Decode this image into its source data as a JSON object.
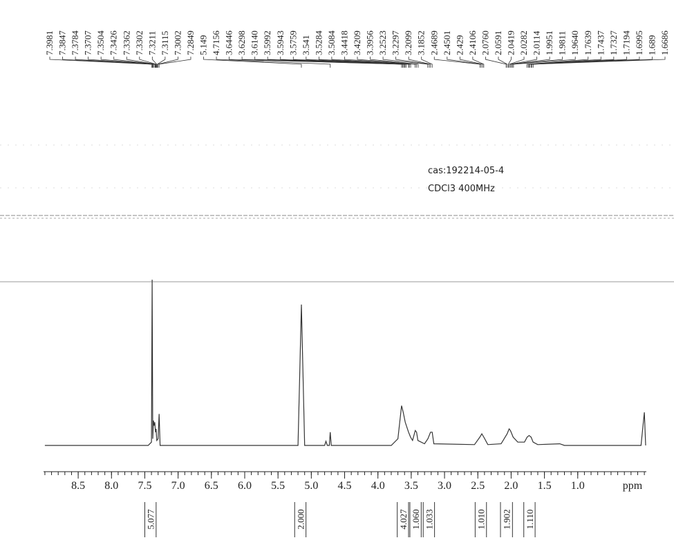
{
  "chart_data": {
    "type": "line",
    "annotations": [
      "cas:192214-05-4",
      "CDCl3 400MHz"
    ],
    "xlabel": "ppm",
    "xlim": [
      9.02,
      -0.03
    ],
    "xticks": [
      8.5,
      {
        "value": 8,
        "label": "8.0"
      },
      7.5,
      {
        "value": 7,
        "label": "7.0"
      },
      6.5,
      {
        "value": 6,
        "label": "6.0"
      },
      5.5,
      {
        "value": 5,
        "label": "5.0"
      },
      4.5,
      {
        "value": 4,
        "label": "4.0"
      },
      3.5,
      {
        "value": 3,
        "label": "3.0"
      },
      2.5,
      {
        "value": 2,
        "label": "2.0"
      },
      1.5,
      {
        "value": 1,
        "label": "1.0"
      }
    ],
    "xminor": 0.1,
    "ylim": [
      0,
      100
    ],
    "color": "#333333",
    "x": [
      9.0,
      7.45,
      7.4,
      7.39,
      7.38,
      7.37,
      7.36,
      7.35,
      7.34,
      7.33,
      7.32,
      7.3,
      7.285,
      7.27,
      5.2,
      5.149,
      5.1,
      4.8,
      4.78,
      4.76,
      4.73,
      4.7156,
      4.7,
      3.8,
      3.7,
      3.645,
      3.62,
      3.59,
      3.54,
      3.51,
      3.48,
      3.44,
      3.42,
      3.4,
      3.3,
      3.25,
      3.21,
      3.185,
      3.16,
      2.55,
      2.47,
      2.44,
      2.41,
      2.35,
      2.15,
      2.06,
      2.03,
      2.01,
      1.97,
      1.9,
      1.8,
      1.76,
      1.73,
      1.7,
      1.67,
      1.6,
      1.27,
      1.2,
      0.05,
      0.0,
      -0.02
    ],
    "values": [
      0,
      0,
      2,
      100,
      4,
      15,
      12,
      14,
      8,
      10,
      3,
      4,
      19,
      0,
      0,
      85,
      0,
      0,
      2.5,
      0,
      0,
      8,
      0,
      0,
      4,
      24,
      20,
      14,
      8,
      5,
      3,
      9,
      8,
      3,
      1,
      4,
      8,
      8,
      1,
      0.5,
      5,
      7,
      5,
      0.5,
      1,
      7,
      10,
      9,
      5,
      2,
      2,
      5,
      6,
      5,
      2,
      0.5,
      1,
      0,
      0,
      20,
      0
    ],
    "peak_labels": [
      7.3981,
      7.3847,
      7.3784,
      7.3707,
      7.3504,
      7.3426,
      7.3362,
      7.3302,
      7.3211,
      7.3115,
      7.3002,
      7.2849,
      5.149,
      4.7156,
      3.6446,
      3.6298,
      {
        "value": 3.614,
        "label": "3.6140"
      },
      3.5992,
      3.5943,
      3.5759,
      3.541,
      3.5284,
      3.5084,
      3.4418,
      3.4209,
      3.3956,
      3.2523,
      3.2297,
      3.2099,
      3.1852,
      2.4689,
      2.4501,
      2.429,
      2.4106,
      {
        "value": 2.076,
        "label": "2.0760"
      },
      2.0591,
      2.0419,
      2.0282,
      2.0114,
      1.9951,
      1.9811,
      {
        "value": 1.964,
        "label": "1.9640"
      },
      1.7639,
      1.7437,
      1.7327,
      1.7194,
      1.6995,
      1.689,
      1.6686
    ],
    "integrals": [
      {
        "value": 5.077,
        "from": 7.5,
        "to": 7.33
      },
      {
        "value": 2,
        "label": "2.000",
        "from": 5.25,
        "to": 5.08
      },
      {
        "value": 4.027,
        "from": 3.71,
        "to": 3.54
      },
      {
        "value": 1.06,
        "label": "1.060",
        "from": 3.52,
        "to": 3.35
      },
      {
        "value": 1.033,
        "label": "1.033",
        "from": 3.32,
        "to": 3.15
      },
      {
        "value": 1.01,
        "label": "1.010",
        "from": 2.54,
        "to": 2.37
      },
      {
        "value": 1.902,
        "from": 2.16,
        "to": 1.98
      },
      {
        "value": 1.11,
        "label": "1.110",
        "from": 1.81,
        "to": 1.64
      }
    ]
  }
}
